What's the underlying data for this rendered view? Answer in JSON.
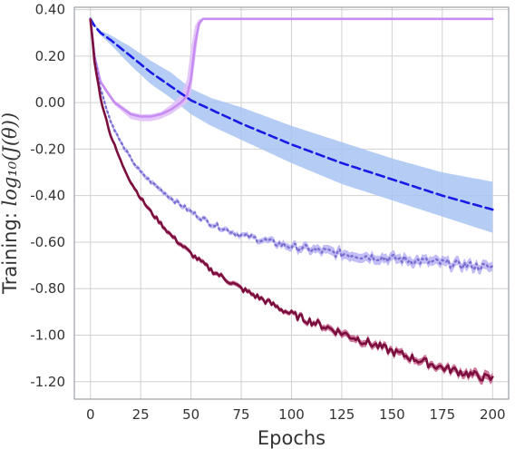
{
  "chart_data": {
    "type": "line",
    "xlabel": "Epochs",
    "ylabel": "Training: log₁₀(J(θ))",
    "xlim": [
      -8,
      208
    ],
    "ylim": [
      -1.275,
      0.41
    ],
    "xticks": [
      0,
      25,
      50,
      75,
      100,
      125,
      150,
      175,
      200
    ],
    "xtick_labels": [
      "0",
      "25",
      "50",
      "75",
      "100",
      "125",
      "150",
      "175",
      "200"
    ],
    "yticks": [
      0.4,
      0.2,
      0.0,
      -0.2,
      -0.4,
      -0.6,
      -0.8,
      -1.0,
      -1.2
    ],
    "ytick_labels": [
      "0.40",
      "0.20",
      "0.00",
      "-0.20",
      "-0.40",
      "-0.60",
      "-0.80",
      "-1.00",
      "-1.20"
    ],
    "grid": true,
    "legend": "none",
    "colors": {
      "blue_dashed": "#1a1ae6",
      "blue_band": "#a8c4f2",
      "lavender": "#c68cf2",
      "lavender_band": "#e2c2fa",
      "dotted": "#7b6fd0",
      "dotted_band": "#b7b2f2",
      "crimson": "#7a0f3e",
      "crimson_band": "#c04c7c"
    },
    "series": [
      {
        "style": "dashed",
        "x": [
          0,
          2,
          5,
          10,
          20,
          30,
          40,
          50,
          60,
          75,
          100,
          125,
          150,
          175,
          200
        ],
        "y": [
          0.36,
          0.33,
          0.3,
          0.27,
          0.2,
          0.13,
          0.07,
          0.01,
          -0.03,
          -0.09,
          -0.18,
          -0.26,
          -0.33,
          -0.4,
          -0.46
        ],
        "band_lower": [
          0.36,
          0.33,
          0.29,
          0.25,
          0.16,
          0.08,
          0.02,
          -0.05,
          -0.1,
          -0.16,
          -0.26,
          -0.35,
          -0.42,
          -0.49,
          -0.56
        ],
        "band_upper": [
          0.36,
          0.34,
          0.31,
          0.29,
          0.24,
          0.18,
          0.13,
          0.06,
          0.02,
          -0.02,
          -0.1,
          -0.17,
          -0.24,
          -0.3,
          -0.34
        ]
      },
      {
        "style": "solid",
        "x": [
          0,
          2,
          5,
          8,
          12,
          20,
          25,
          30,
          35,
          40,
          45,
          48,
          50,
          52,
          54,
          56,
          75,
          100,
          125,
          150,
          175,
          200
        ],
        "y": [
          0.36,
          0.2,
          0.09,
          0.05,
          0.0,
          -0.05,
          -0.06,
          -0.06,
          -0.05,
          -0.03,
          0.0,
          0.03,
          0.1,
          0.25,
          0.34,
          0.36,
          0.36,
          0.36,
          0.36,
          0.36,
          0.36,
          0.36
        ],
        "band_lower": [
          0.36,
          0.19,
          0.08,
          0.04,
          -0.01,
          -0.07,
          -0.08,
          -0.08,
          -0.07,
          -0.05,
          -0.02,
          0.0,
          0.04,
          0.18,
          0.32,
          0.36,
          0.36,
          0.36,
          0.36,
          0.36,
          0.36,
          0.36
        ],
        "band_upper": [
          0.36,
          0.21,
          0.1,
          0.06,
          0.01,
          -0.04,
          -0.05,
          -0.05,
          -0.04,
          -0.01,
          0.03,
          0.1,
          0.23,
          0.33,
          0.36,
          0.36,
          0.36,
          0.36,
          0.36,
          0.36,
          0.36,
          0.36
        ]
      },
      {
        "style": "dotted",
        "x": [
          0,
          2,
          5,
          10,
          15,
          20,
          25,
          30,
          40,
          50,
          60,
          75,
          100,
          125,
          150,
          175,
          200
        ],
        "y": [
          0.36,
          0.2,
          0.06,
          -0.08,
          -0.17,
          -0.24,
          -0.3,
          -0.34,
          -0.41,
          -0.47,
          -0.52,
          -0.57,
          -0.62,
          -0.65,
          -0.67,
          -0.69,
          -0.71
        ],
        "band_lower": [
          0.36,
          0.19,
          0.05,
          -0.09,
          -0.18,
          -0.25,
          -0.31,
          -0.35,
          -0.42,
          -0.48,
          -0.53,
          -0.58,
          -0.635,
          -0.67,
          -0.69,
          -0.71,
          -0.73
        ],
        "band_upper": [
          0.36,
          0.21,
          0.07,
          -0.07,
          -0.16,
          -0.23,
          -0.29,
          -0.33,
          -0.4,
          -0.46,
          -0.51,
          -0.56,
          -0.605,
          -0.63,
          -0.65,
          -0.67,
          -0.69
        ]
      },
      {
        "style": "solid",
        "x": [
          0,
          2,
          5,
          10,
          15,
          20,
          25,
          30,
          40,
          50,
          60,
          75,
          100,
          125,
          150,
          175,
          200
        ],
        "y": [
          0.36,
          0.18,
          0.02,
          -0.14,
          -0.25,
          -0.34,
          -0.41,
          -0.47,
          -0.57,
          -0.65,
          -0.72,
          -0.8,
          -0.91,
          -0.99,
          -1.07,
          -1.14,
          -1.19
        ],
        "band_lower": [
          0.36,
          0.17,
          0.01,
          -0.15,
          -0.26,
          -0.35,
          -0.42,
          -0.48,
          -0.58,
          -0.66,
          -0.73,
          -0.81,
          -0.92,
          -1.005,
          -1.085,
          -1.155,
          -1.21
        ],
        "band_upper": [
          0.36,
          0.19,
          0.03,
          -0.13,
          -0.24,
          -0.33,
          -0.4,
          -0.46,
          -0.56,
          -0.64,
          -0.71,
          -0.79,
          -0.9,
          -0.975,
          -1.055,
          -1.125,
          -1.17
        ]
      }
    ]
  }
}
